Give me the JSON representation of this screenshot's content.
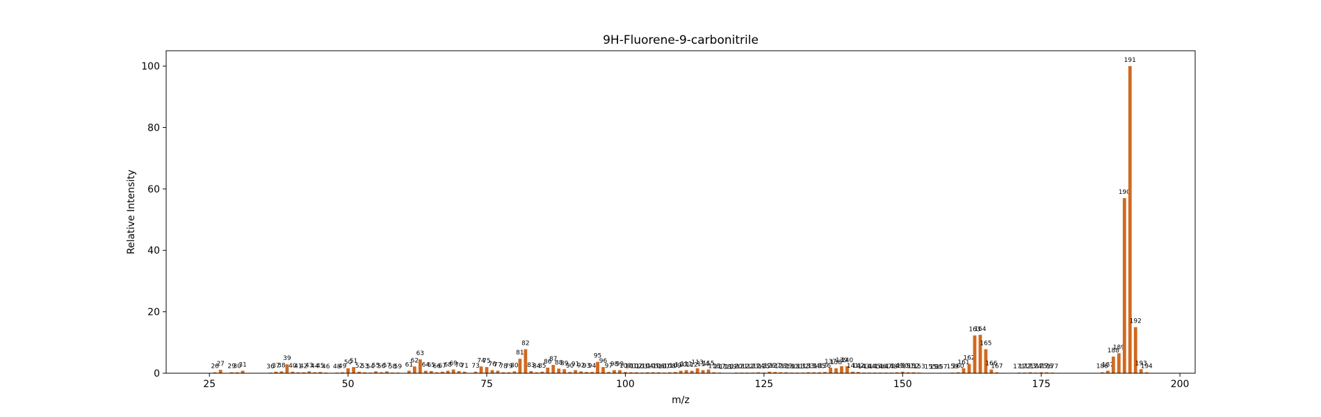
{
  "chart_data": {
    "type": "bar",
    "title": "9H-Fluorene-9-carbonitrile",
    "x_label": "m/z",
    "y_label": "Relative Intensity",
    "color": "#d2691e",
    "x": [
      26,
      27,
      29,
      30,
      31,
      36,
      37,
      38,
      39,
      40,
      41,
      42,
      43,
      44,
      45,
      46,
      48,
      49,
      50,
      51,
      52,
      53,
      54,
      55,
      56,
      57,
      58,
      59,
      61,
      62,
      63,
      64,
      65,
      66,
      67,
      68,
      69,
      70,
      71,
      73,
      74,
      75,
      76,
      77,
      78,
      79,
      80,
      81,
      82,
      83,
      84,
      85,
      86,
      87,
      88,
      89,
      90,
      91,
      92,
      93,
      94,
      95,
      96,
      97,
      98,
      99,
      100,
      101,
      102,
      103,
      104,
      105,
      106,
      107,
      108,
      109,
      110,
      111,
      112,
      113,
      114,
      115,
      116,
      117,
      118,
      119,
      120,
      121,
      122,
      123,
      124,
      125,
      126,
      127,
      128,
      129,
      130,
      131,
      132,
      133,
      134,
      135,
      136,
      137,
      138,
      139,
      140,
      141,
      142,
      143,
      144,
      145,
      146,
      147,
      148,
      149,
      150,
      151,
      152,
      153,
      155,
      156,
      157,
      159,
      160,
      161,
      162,
      163,
      164,
      165,
      166,
      167,
      171,
      172,
      173,
      174,
      175,
      176,
      177,
      186,
      187,
      188,
      189,
      190,
      191,
      192,
      193,
      194
    ],
    "values": [
      0.3,
      1.1,
      0.3,
      0.3,
      0.8,
      0.2,
      0.5,
      0.6,
      2.9,
      0.5,
      0.3,
      0.3,
      0.6,
      0.3,
      0.4,
      0.2,
      0.2,
      0.3,
      1.6,
      2.0,
      0.5,
      0.3,
      0.2,
      0.6,
      0.3,
      0.6,
      0.2,
      0.2,
      0.8,
      2.2,
      4.5,
      0.8,
      0.7,
      0.3,
      0.5,
      0.8,
      1.2,
      0.7,
      0.5,
      0.5,
      2.2,
      2.0,
      1.0,
      0.8,
      0.3,
      0.3,
      0.6,
      4.7,
      7.8,
      0.7,
      0.3,
      0.5,
      1.8,
      2.7,
      1.5,
      1.3,
      0.4,
      1.0,
      0.6,
      0.4,
      0.4,
      3.7,
      2.0,
      0.4,
      1.0,
      1.0,
      0.4,
      0.3,
      0.3,
      0.2,
      0.3,
      0.3,
      0.3,
      0.2,
      0.3,
      0.4,
      0.8,
      1.0,
      0.8,
      1.6,
      1.0,
      1.2,
      0.3,
      0.2,
      0.1,
      0.1,
      0.2,
      0.2,
      0.2,
      0.2,
      0.3,
      0.2,
      0.5,
      0.4,
      0.3,
      0.3,
      0.2,
      0.2,
      0.2,
      0.3,
      0.3,
      0.3,
      0.4,
      1.8,
      1.6,
      2.3,
      2.3,
      0.5,
      0.4,
      0.2,
      0.2,
      0.2,
      0.2,
      0.2,
      0.2,
      0.3,
      0.5,
      0.3,
      0.3,
      0.2,
      0.1,
      0.1,
      0.1,
      0.2,
      0.3,
      1.6,
      3.0,
      12.3,
      12.5,
      7.8,
      1.2,
      0.3,
      0.2,
      0.2,
      0.3,
      0.2,
      0.3,
      0.3,
      0.2,
      0.3,
      0.8,
      5.4,
      6.5,
      57,
      100,
      15,
      1.3,
      0.3
    ],
    "xlim": [
      17.2,
      202.75
    ],
    "ylim": [
      0,
      105
    ],
    "xticks": [
      25,
      50,
      75,
      100,
      125,
      150,
      175,
      200
    ],
    "yticks": [
      0,
      20,
      40,
      60,
      80,
      100
    ]
  }
}
